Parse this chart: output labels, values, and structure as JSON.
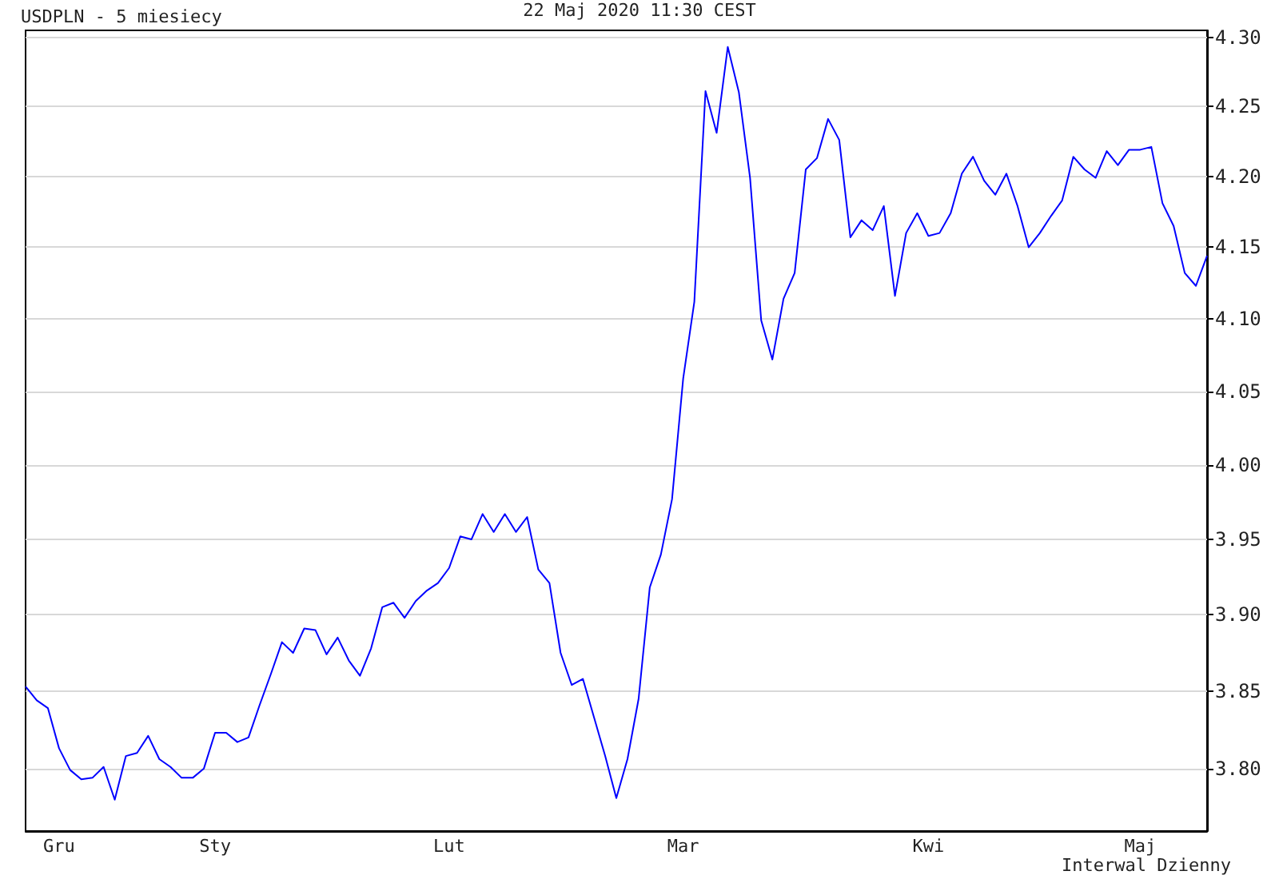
{
  "chart_data": {
    "type": "line",
    "title": "USDPLN - 5 miesiecy",
    "subtitle": "22 Maj 2020 11:30 CEST",
    "annotations": [
      "Interwal Dzienny"
    ],
    "categories": [
      null,
      null,
      null,
      "Gru",
      null,
      null,
      null,
      null,
      null,
      null,
      null,
      null,
      null,
      null,
      null,
      null,
      null,
      "Sty",
      null,
      null,
      null,
      null,
      null,
      null,
      null,
      null,
      null,
      null,
      null,
      null,
      null,
      null,
      null,
      null,
      null,
      null,
      null,
      null,
      "Lut",
      null,
      null,
      null,
      null,
      null,
      null,
      null,
      null,
      null,
      null,
      null,
      null,
      null,
      null,
      null,
      null,
      null,
      null,
      null,
      null,
      "Mar",
      null,
      null,
      null,
      null,
      null,
      null,
      null,
      null,
      null,
      null,
      null,
      null,
      null,
      null,
      null,
      null,
      null,
      null,
      null,
      null,
      null,
      "Kwi",
      null,
      null,
      null,
      null,
      null,
      null,
      null,
      null,
      null,
      null,
      null,
      null,
      null,
      null,
      null,
      null,
      null,
      null,
      "Maj",
      null,
      null,
      null,
      null,
      null,
      null
    ],
    "series": [
      {
        "color": "#0000ff",
        "values": [
          3.853,
          3.844,
          3.839,
          3.813,
          3.799,
          3.793,
          3.794,
          3.801,
          3.78,
          3.808,
          3.81,
          3.821,
          3.806,
          3.801,
          3.794,
          3.794,
          3.8,
          3.823,
          3.823,
          3.817,
          3.82,
          3.841,
          3.861,
          3.882,
          3.875,
          3.891,
          3.89,
          3.874,
          3.885,
          3.87,
          3.86,
          3.878,
          3.905,
          3.908,
          3.898,
          3.909,
          3.916,
          3.921,
          3.931,
          3.952,
          3.95,
          3.967,
          3.955,
          3.967,
          3.955,
          3.965,
          3.93,
          3.921,
          3.875,
          3.854,
          3.858,
          3.833,
          3.808,
          3.781,
          3.806,
          3.845,
          3.918,
          3.94,
          3.977,
          4.059,
          4.112,
          4.261,
          4.231,
          4.293,
          4.26,
          4.199,
          4.099,
          4.072,
          4.114,
          4.132,
          4.205,
          4.213,
          4.241,
          4.226,
          4.157,
          4.169,
          4.162,
          4.179,
          4.116,
          4.16,
          4.174,
          4.158,
          4.16,
          4.174,
          4.202,
          4.214,
          4.197,
          4.187,
          4.202,
          4.179,
          4.15,
          4.16,
          4.172,
          4.183,
          4.214,
          4.205,
          4.199,
          4.218,
          4.208,
          4.219,
          4.219,
          4.221,
          4.181,
          4.165,
          4.132,
          4.123,
          4.144
        ]
      }
    ],
    "ylim": [
      3.76,
      4.305
    ],
    "yticks": [
      {
        "value": 3.8,
        "label": "3.80"
      },
      {
        "value": 3.85,
        "label": "3.85"
      },
      {
        "value": 3.9,
        "label": "3.90"
      },
      {
        "value": 3.95,
        "label": "3.95"
      },
      {
        "value": 4.0,
        "label": "4.00"
      },
      {
        "value": 4.05,
        "label": "4.05"
      },
      {
        "value": 4.1,
        "label": "4.10"
      },
      {
        "value": 4.15,
        "label": "4.15"
      },
      {
        "value": 4.2,
        "label": "4.20"
      },
      {
        "value": 4.25,
        "label": "4.25"
      },
      {
        "value": 4.3,
        "label": "4.30"
      }
    ],
    "log": true,
    "grid": "y",
    "marker": "none",
    "line_style": "solid"
  }
}
